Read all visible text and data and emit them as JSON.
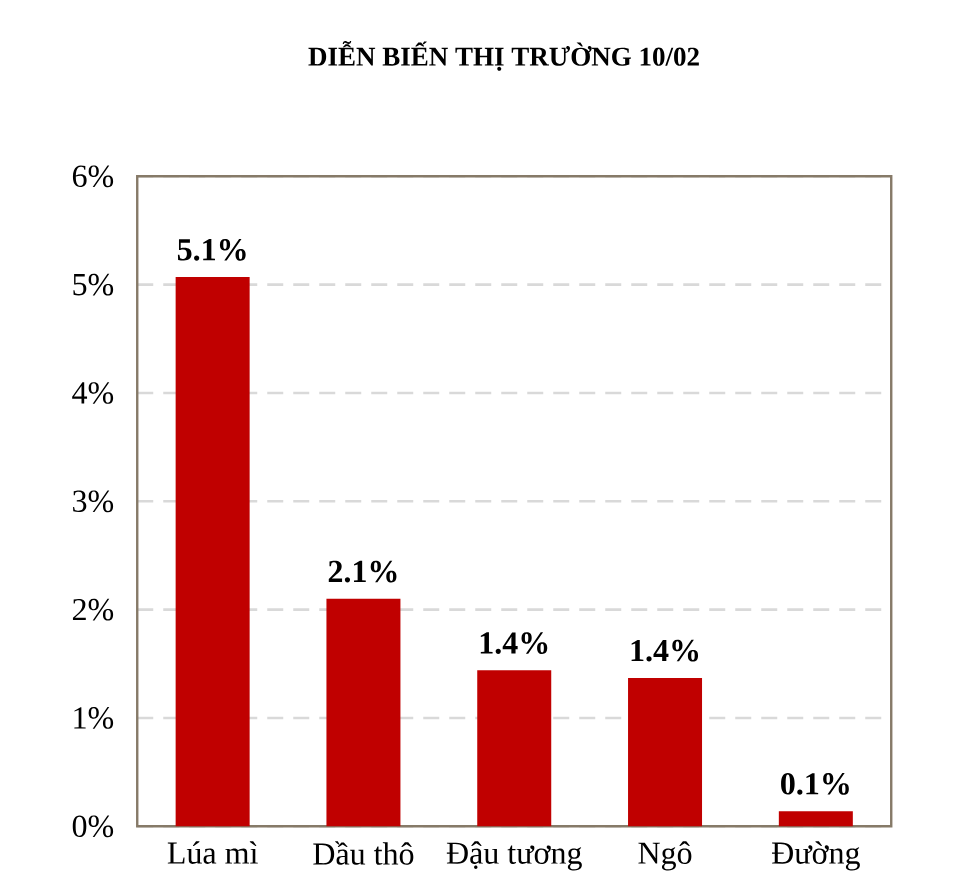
{
  "chart_data": {
    "type": "bar",
    "title": "DIỄN BIẾN THỊ TRƯỜNG 10/02",
    "categories": [
      "Lúa mì",
      "Dầu thô",
      "Đậu tương",
      "Ngô",
      "Đường"
    ],
    "values": [
      5.07,
      2.1,
      1.44,
      1.37,
      0.14
    ],
    "color": "#c00000",
    "value_labels": [
      "5.1%",
      "2.1%",
      "1.4%",
      "1.4%",
      "0.1%"
    ],
    "ylim": [
      0,
      6
    ],
    "yticks": [
      {
        "value": 0,
        "label": "0%"
      },
      {
        "value": 1,
        "label": "1%"
      },
      {
        "value": 2,
        "label": "2%"
      },
      {
        "value": 3,
        "label": "3%"
      },
      {
        "value": 4,
        "label": "4%"
      },
      {
        "value": 5,
        "label": "5%"
      },
      {
        "value": 6,
        "label": "6%"
      }
    ],
    "grid": "y"
  }
}
